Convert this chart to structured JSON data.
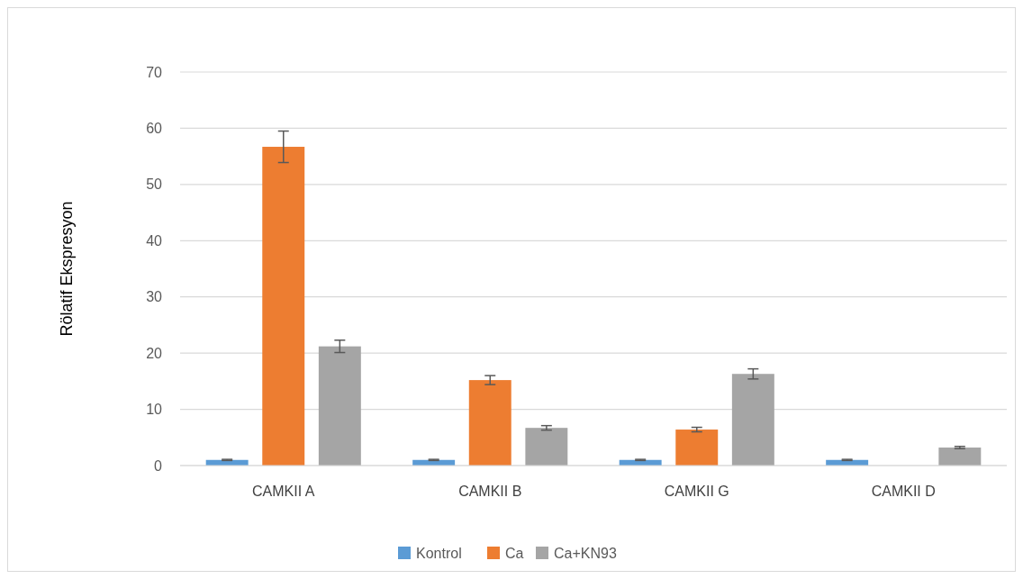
{
  "chart_data": {
    "type": "bar",
    "ylabel": "Rölatif Ekspresyon",
    "categories": [
      "CAMKII A",
      "CAMKII B",
      "CAMKII G",
      "CAMKII D"
    ],
    "series": [
      {
        "name": "Kontrol",
        "color": "#5b9bd5",
        "values": [
          1,
          1,
          1,
          1
        ],
        "errors": [
          0.1,
          0.1,
          0.1,
          0.1
        ]
      },
      {
        "name": "Ca",
        "color": "#ed7d31",
        "values": [
          56.7,
          15.2,
          6.4,
          null
        ],
        "errors": [
          2.8,
          0.8,
          0.4,
          null
        ]
      },
      {
        "name": "Ca+KN93",
        "color": "#a5a5a5",
        "values": [
          21.2,
          6.7,
          16.3,
          3.2
        ],
        "errors": [
          1.1,
          0.4,
          0.9,
          0.2
        ]
      }
    ],
    "ylim": [
      0,
      70
    ],
    "yticks": [
      0,
      10,
      20,
      30,
      40,
      50,
      60,
      70
    ],
    "grid": "y",
    "legend": "bottom"
  }
}
